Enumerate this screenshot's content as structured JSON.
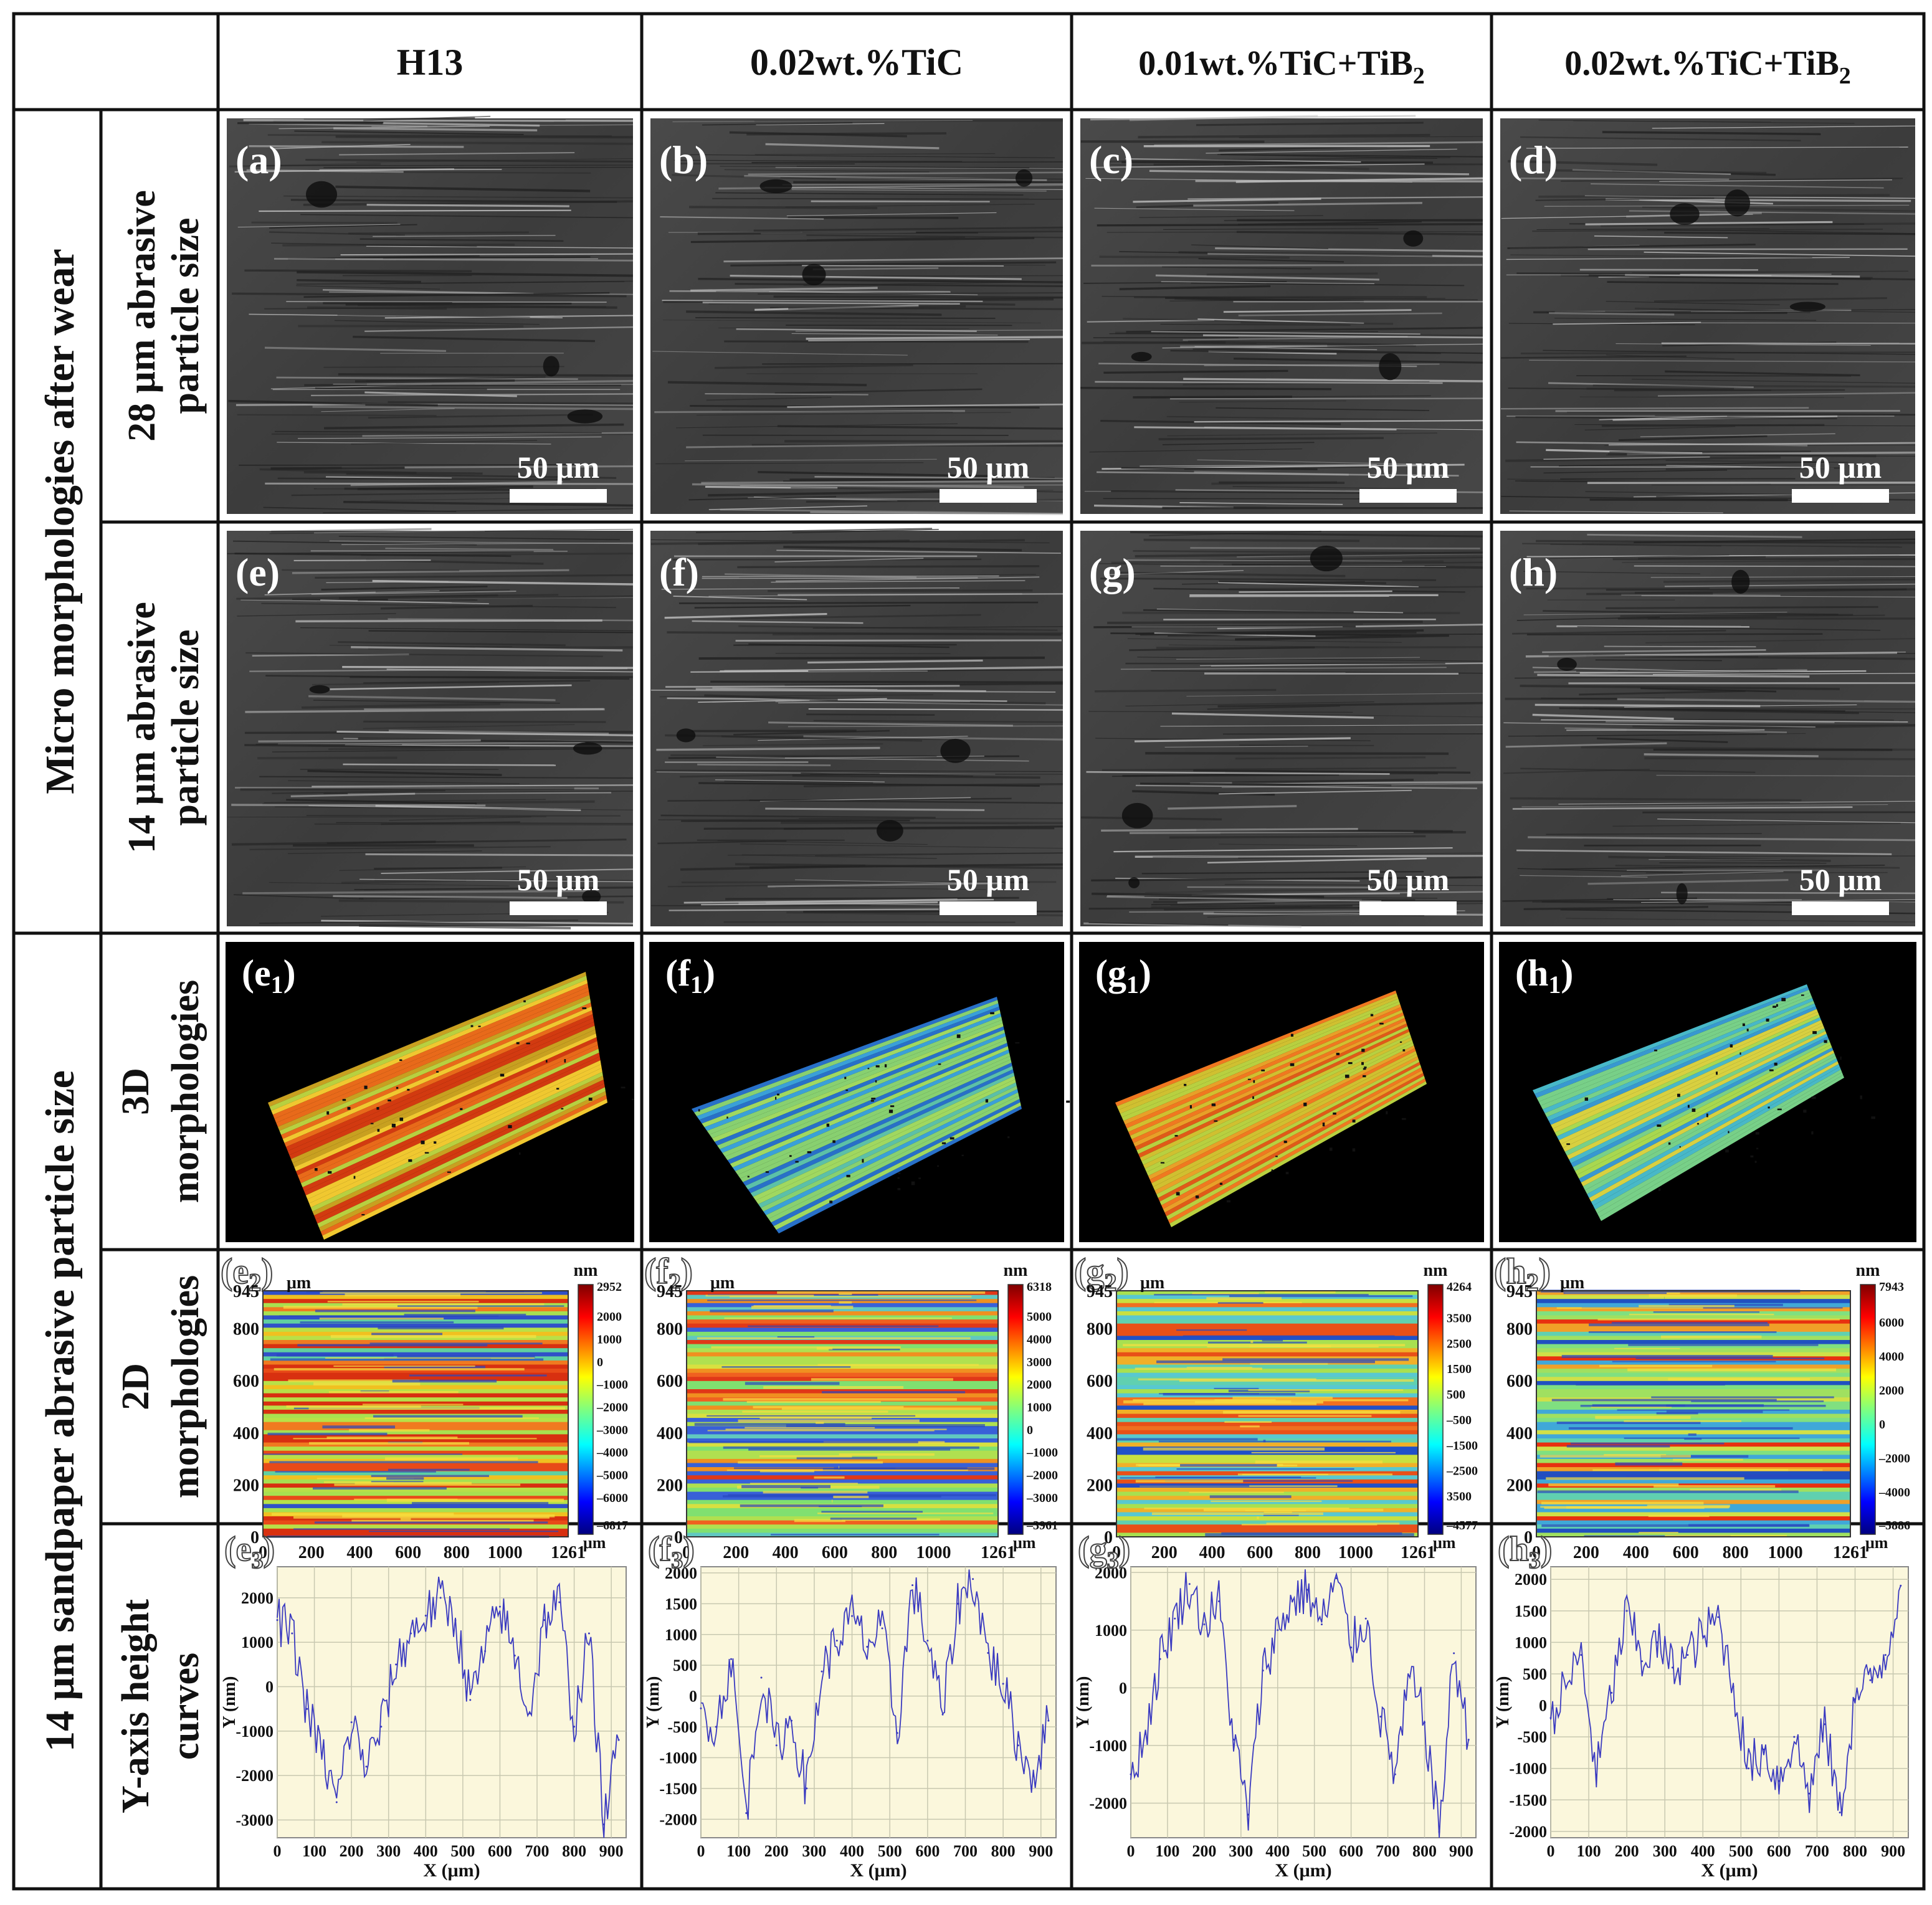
{
  "header": {
    "columns": [
      {
        "text": "H13",
        "sub": ""
      },
      {
        "text": "0.02wt.%TiC",
        "sub": ""
      },
      {
        "text": "0.01wt.%TiC+TiB",
        "sub": "2"
      },
      {
        "text": "0.02wt.%TiC+TiB",
        "sub": "2"
      }
    ]
  },
  "groups": {
    "top": "Micro morphologies after wear",
    "bottom": "14 μm sandpaper abrasive particle size"
  },
  "rows": {
    "r28": [
      "28 μm  abrasive",
      "particle size"
    ],
    "r14": [
      "14 μm  abrasive",
      "particle size"
    ],
    "r3d": [
      "3D",
      "morphologies"
    ],
    "r2d": [
      "2D",
      "morphologies"
    ],
    "rcurve": [
      "Y-axis height",
      "curves"
    ]
  },
  "sem": {
    "scale_bar": "50 μm",
    "labels_28": [
      "(a)",
      "(b)",
      "(c)",
      "(d)"
    ],
    "labels_14": [
      "(e)",
      "(f)",
      "(g)",
      "(h)"
    ]
  },
  "panels_3d": [
    {
      "letter": "e",
      "sub": "1"
    },
    {
      "letter": "f",
      "sub": "1"
    },
    {
      "letter": "g",
      "sub": "1"
    },
    {
      "letter": "h",
      "sub": "1"
    }
  ],
  "maps_2d": {
    "axis_unit_top": "μm",
    "x_ticks": [
      "0",
      "200",
      "400",
      "600",
      "800",
      "1000",
      "1261"
    ],
    "y_ticks": [
      "0",
      "200",
      "400",
      "600",
      "800",
      "945"
    ],
    "x_max": 1261,
    "y_max": 945,
    "colorbar_unit": "nm",
    "colorbar_bottom_unit": "μm",
    "panels": [
      {
        "letter": "e",
        "sub": "2",
        "max": 2952,
        "min": -6817,
        "cbar_ticks": [
          "2000",
          "1000",
          "0",
          "–1000",
          "–2000",
          "–3000",
          "–4000",
          "–5000",
          "–6000"
        ]
      },
      {
        "letter": "f",
        "sub": "2",
        "max": 6318,
        "min": -3961,
        "cbar_ticks": [
          "5000",
          "4000",
          "3000",
          "2000",
          "1000",
          "0",
          "–1000",
          "–2000",
          "–3000"
        ]
      },
      {
        "letter": "g",
        "sub": "2",
        "max": 4264,
        "min": -4577,
        "cbar_ticks": [
          "3500",
          "2500",
          "1500",
          "500",
          "–500",
          "–1500",
          "–2500",
          "3500"
        ]
      },
      {
        "letter": "h",
        "sub": "2",
        "max": 7943,
        "min": -5886,
        "cbar_ticks": [
          "6000",
          "4000",
          "2000",
          "0",
          "–2000",
          "–4000"
        ]
      }
    ]
  },
  "chart_data": [
    {
      "type": "line",
      "title": "(e3)",
      "xlabel": "X (μm)",
      "ylabel": "Y (nm)",
      "xlim": [
        0,
        940
      ],
      "ylim": [
        -3400,
        2700
      ],
      "x_ticks": [
        0,
        100,
        200,
        300,
        400,
        500,
        600,
        700,
        800,
        900
      ],
      "y_ticks": [
        -3000,
        -2000,
        -1000,
        0,
        1000,
        2000
      ],
      "x": [
        0,
        40,
        80,
        120,
        160,
        200,
        240,
        280,
        320,
        360,
        400,
        440,
        480,
        520,
        560,
        600,
        640,
        680,
        720,
        760,
        800,
        840,
        880,
        920
      ],
      "y": [
        1500,
        1200,
        -500,
        -1500,
        -2600,
        -800,
        -1800,
        -900,
        500,
        1200,
        1600,
        2000,
        1500,
        -300,
        800,
        1800,
        700,
        -600,
        1500,
        1900,
        -900,
        1200,
        -3100,
        -1200
      ]
    },
    {
      "type": "line",
      "title": "(f3)",
      "xlabel": "X (μm)",
      "ylabel": "Y (nm)",
      "xlim": [
        0,
        940
      ],
      "ylim": [
        -2300,
        2100
      ],
      "x_ticks": [
        0,
        100,
        200,
        300,
        400,
        500,
        600,
        700,
        800,
        900
      ],
      "y_ticks": [
        -2000,
        -1500,
        -1000,
        -500,
        0,
        500,
        1000,
        1500,
        2000
      ],
      "x": [
        0,
        40,
        80,
        120,
        160,
        200,
        240,
        280,
        320,
        360,
        400,
        440,
        480,
        520,
        560,
        600,
        640,
        680,
        720,
        760,
        800,
        840,
        880,
        920
      ],
      "y": [
        -200,
        -500,
        600,
        -1900,
        300,
        -800,
        -400,
        -1500,
        400,
        900,
        1300,
        800,
        1100,
        -600,
        1800,
        900,
        -300,
        1500,
        1900,
        700,
        200,
        -800,
        -1300,
        -400
      ]
    },
    {
      "type": "line",
      "title": "(g3)",
      "xlabel": "X (μm)",
      "ylabel": "Y (nm)",
      "xlim": [
        0,
        940
      ],
      "ylim": [
        -2600,
        2100
      ],
      "x_ticks": [
        0,
        100,
        200,
        300,
        400,
        500,
        600,
        700,
        800,
        900
      ],
      "y_ticks": [
        -2000,
        -1000,
        0,
        1000,
        2000
      ],
      "x": [
        0,
        40,
        80,
        120,
        160,
        200,
        240,
        280,
        320,
        360,
        400,
        440,
        480,
        520,
        560,
        600,
        640,
        680,
        720,
        760,
        800,
        840,
        880,
        920
      ],
      "y": [
        -1500,
        -800,
        500,
        1200,
        1800,
        1100,
        1500,
        -900,
        -2200,
        300,
        1000,
        1500,
        1700,
        1100,
        1900,
        700,
        1200,
        -500,
        -1500,
        200,
        -600,
        -2500,
        600,
        -900
      ]
    },
    {
      "type": "line",
      "title": "(h3)",
      "xlabel": "X (μm)",
      "ylabel": "Y (nm)",
      "xlim": [
        0,
        940
      ],
      "ylim": [
        -2100,
        2200
      ],
      "x_ticks": [
        0,
        100,
        200,
        300,
        400,
        500,
        600,
        700,
        800,
        900
      ],
      "y_ticks": [
        -2000,
        -1500,
        -1000,
        -500,
        0,
        500,
        1000,
        1500,
        2000
      ],
      "x": [
        0,
        40,
        80,
        120,
        160,
        200,
        240,
        280,
        320,
        360,
        400,
        440,
        480,
        520,
        560,
        600,
        640,
        680,
        720,
        760,
        800,
        840,
        880,
        920
      ],
      "y": [
        -200,
        300,
        800,
        -1100,
        200,
        1500,
        700,
        1000,
        600,
        800,
        1100,
        1400,
        300,
        -1000,
        -700,
        -1200,
        -500,
        -1400,
        -300,
        -1700,
        100,
        400,
        800,
        1900
      ]
    }
  ]
}
